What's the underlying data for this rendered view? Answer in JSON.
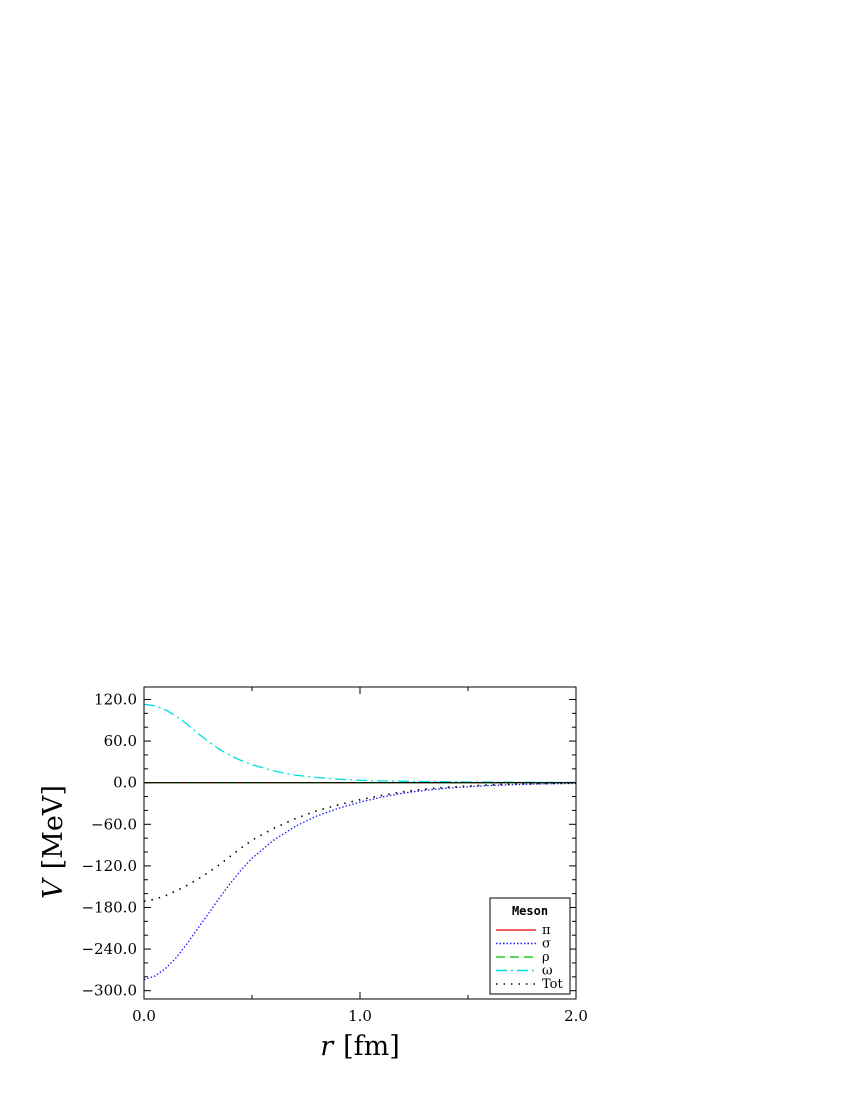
{
  "chart_data": {
    "type": "line",
    "xlabel_var": "r",
    "xlabel_unit": "[fm]",
    "ylabel_var": "V",
    "ylabel_unit": "[MeV]",
    "xlim": [
      0.0,
      2.0
    ],
    "ylim": [
      -312.0,
      138.0
    ],
    "x_ticks": [
      0.0,
      1.0,
      2.0
    ],
    "x_tick_labels": [
      "0.0",
      "1.0",
      "2.0"
    ],
    "y_ticks": [
      120,
      60,
      0,
      -60,
      -120,
      -180,
      -240,
      -300
    ],
    "y_tick_labels": [
      "120.0",
      "60.0",
      "0.0",
      "−60.0",
      "−120.0",
      "−180.0",
      "−240.0",
      "−300.0"
    ],
    "zero_line": true,
    "grid": false,
    "legend": {
      "title": "Meson",
      "position": "bottom-right"
    },
    "series": [
      {
        "name": "π",
        "color": "#e8302a",
        "style": "solid",
        "x": [
          0.0,
          0.5,
          1.0,
          1.5,
          2.0
        ],
        "y": [
          0,
          0,
          0,
          0,
          0
        ]
      },
      {
        "name": "σ",
        "color": "#1a1aff",
        "style": "dotted",
        "x": [
          0.0,
          0.05,
          0.1,
          0.15,
          0.2,
          0.25,
          0.3,
          0.35,
          0.4,
          0.45,
          0.5,
          0.6,
          0.7,
          0.8,
          0.9,
          1.0,
          1.1,
          1.2,
          1.3,
          1.4,
          1.5,
          1.6,
          1.7,
          1.8,
          1.9,
          2.0
        ],
        "y": [
          -284,
          -279,
          -268,
          -252,
          -232,
          -210,
          -188,
          -166,
          -145,
          -126,
          -109,
          -83,
          -63,
          -48,
          -37,
          -28,
          -21,
          -15,
          -11,
          -8,
          -6,
          -4,
          -3,
          -2,
          -1.5,
          -1
        ]
      },
      {
        "name": "ρ",
        "color": "#22cc22",
        "style": "dashed",
        "x": [
          0.0,
          0.5,
          1.0,
          1.5,
          2.0
        ],
        "y": [
          0,
          0,
          0,
          0,
          0
        ]
      },
      {
        "name": "ω",
        "color": "#00dddd",
        "style": "dashdot",
        "x": [
          0.0,
          0.05,
          0.1,
          0.15,
          0.2,
          0.25,
          0.3,
          0.35,
          0.4,
          0.45,
          0.5,
          0.6,
          0.7,
          0.8,
          0.9,
          1.0,
          1.1,
          1.2,
          1.3,
          1.4,
          1.5,
          1.6,
          1.8,
          2.0
        ],
        "y": [
          113,
          111,
          105,
          96,
          84,
          71,
          59,
          48,
          39,
          32,
          26,
          17,
          11,
          7.5,
          5,
          3.5,
          2.5,
          2,
          1.7,
          1.4,
          1.1,
          0.9,
          0.5,
          0.2
        ]
      },
      {
        "name": "Tot",
        "color": "#000000",
        "style": "loose-dotted",
        "x": [
          0.0,
          0.05,
          0.1,
          0.15,
          0.2,
          0.25,
          0.3,
          0.35,
          0.4,
          0.45,
          0.5,
          0.6,
          0.7,
          0.8,
          0.9,
          1.0,
          1.1,
          1.2,
          1.3,
          1.4,
          1.5,
          1.6,
          1.7,
          1.8,
          1.9,
          2.0
        ],
        "y": [
          -171,
          -168,
          -163,
          -156,
          -148,
          -139,
          -129,
          -118,
          -106,
          -94,
          -83,
          -66,
          -52,
          -40.5,
          -32,
          -24.5,
          -18.5,
          -13,
          -9.3,
          -6.6,
          -4.9,
          -3.1,
          -2.1,
          -1.4,
          -1.1,
          -0.8
        ]
      }
    ]
  }
}
